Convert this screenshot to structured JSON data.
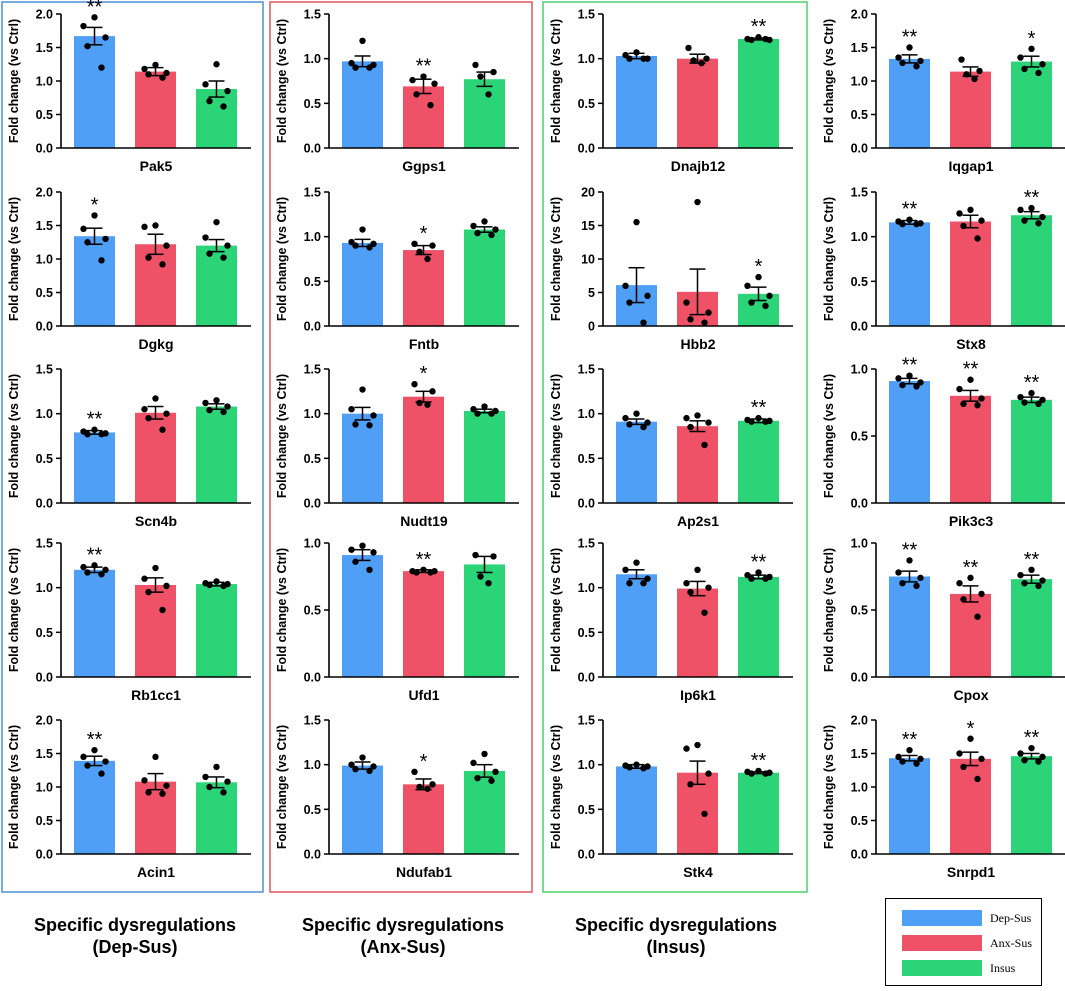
{
  "colors": {
    "dep_sus": "#4f9ff7",
    "anx_sus": "#ef5266",
    "insus": "#2ad477",
    "box_dep_sus": "#4a90d9",
    "box_anx_sus": "#e05763",
    "box_insus": "#4fd06b"
  },
  "group_titles": [
    {
      "line1": "Specific dysregulations",
      "line2": "(Dep-Sus)",
      "box": "dep_sus"
    },
    {
      "line1": "Specific dysregulations",
      "line2": "(Anx-Sus)",
      "box": "anx_sus"
    },
    {
      "line1": "Specific dysregulations",
      "line2": "(Insus)",
      "box": "insus"
    }
  ],
  "legend": [
    {
      "label": "Dep-Sus",
      "color": "#4f9ff7"
    },
    {
      "label": "Anx-Sus",
      "color": "#ef5266"
    },
    {
      "label": "Insus",
      "color": "#2ad477"
    }
  ],
  "chart_data": [
    {
      "type": "bar",
      "title": "Pak5",
      "ylabel": "Fold change (vs Ctrl)",
      "ylim": [
        0,
        2.0
      ],
      "yticks": [
        "0.0",
        "0.5",
        "1.0",
        "1.5",
        "2.0"
      ],
      "categories": [
        "Dep-Sus",
        "Anx-Sus",
        "Insus"
      ],
      "values": [
        1.67,
        1.14,
        0.88
      ],
      "errors": [
        0.13,
        0.06,
        0.12
      ],
      "significance": [
        "**",
        "",
        ""
      ],
      "points": [
        [
          1.95,
          1.82,
          1.65,
          1.52,
          1.2
        ],
        [
          1.24,
          1.18,
          1.12,
          1.1,
          1.05
        ],
        [
          1.25,
          0.95,
          0.85,
          0.7,
          0.62
        ]
      ]
    },
    {
      "type": "bar",
      "title": "Ggps1",
      "ylabel": "Fold change (vs Ctrl)",
      "ylim": [
        0,
        1.5
      ],
      "yticks": [
        "0.0",
        "0.5",
        "1.0",
        "1.5"
      ],
      "categories": [
        "Dep-Sus",
        "Anx-Sus",
        "Insus"
      ],
      "values": [
        0.97,
        0.69,
        0.77
      ],
      "errors": [
        0.06,
        0.08,
        0.08
      ],
      "significance": [
        "",
        "**",
        ""
      ],
      "points": [
        [
          1.2,
          0.95,
          0.93,
          0.9,
          0.9
        ],
        [
          0.8,
          0.76,
          0.72,
          0.6,
          0.48
        ],
        [
          0.93,
          0.85,
          0.8,
          0.6
        ]
      ]
    },
    {
      "type": "bar",
      "title": "Dnajb12",
      "ylabel": "Fold change (vs Ctrl)",
      "ylim": [
        0,
        1.5
      ],
      "yticks": [
        "0.0",
        "0.5",
        "1.0",
        "1.5"
      ],
      "categories": [
        "Dep-Sus",
        "Anx-Sus",
        "Insus"
      ],
      "values": [
        1.03,
        1.0,
        1.22
      ],
      "errors": [
        0.03,
        0.05,
        0.01
      ],
      "significance": [
        "",
        "",
        "**"
      ],
      "points": [
        [
          1.07,
          1.04,
          1.0,
          1.0,
          1.0
        ],
        [
          1.12,
          1.0,
          0.98,
          0.95
        ],
        [
          1.24,
          1.22,
          1.21,
          1.21,
          1.22
        ]
      ]
    },
    {
      "type": "bar",
      "title": "Iqgap1",
      "ylabel": "Fold change (vs Ctrl)",
      "ylim": [
        0,
        2.0
      ],
      "yticks": [
        "0.0",
        "0.5",
        "1.0",
        "1.5",
        "2.0"
      ],
      "categories": [
        "Dep-Sus",
        "Anx-Sus",
        "Insus"
      ],
      "values": [
        1.33,
        1.14,
        1.29
      ],
      "errors": [
        0.06,
        0.07,
        0.08
      ],
      "significance": [
        "**",
        "",
        "*"
      ],
      "points": [
        [
          1.5,
          1.35,
          1.3,
          1.27,
          1.22
        ],
        [
          1.32,
          1.15,
          1.1,
          1.03
        ],
        [
          1.48,
          1.35,
          1.25,
          1.18,
          1.12
        ]
      ]
    },
    {
      "type": "bar",
      "title": "Dgkg",
      "ylabel": "Fold change (vs Ctrl)",
      "ylim": [
        0,
        2.0
      ],
      "yticks": [
        "0.0",
        "0.5",
        "1.0",
        "1.5",
        "2.0"
      ],
      "categories": [
        "Dep-Sus",
        "Anx-Sus",
        "Insus"
      ],
      "values": [
        1.34,
        1.22,
        1.2
      ],
      "errors": [
        0.12,
        0.15,
        0.09
      ],
      "significance": [
        "*",
        "",
        ""
      ],
      "points": [
        [
          1.65,
          1.45,
          1.3,
          1.25,
          0.98
        ],
        [
          1.5,
          1.48,
          1.2,
          1.02,
          0.92
        ],
        [
          1.55,
          1.32,
          1.2,
          1.08,
          1.02
        ]
      ]
    },
    {
      "type": "bar",
      "title": "Fntb",
      "ylabel": "Fold change (vs Ctrl)",
      "ylim": [
        0,
        1.5
      ],
      "yticks": [
        "0.0",
        "0.5",
        "1.0",
        "1.5"
      ],
      "categories": [
        "Dep-Sus",
        "Anx-Sus",
        "Insus"
      ],
      "values": [
        0.93,
        0.85,
        1.08
      ],
      "errors": [
        0.04,
        0.05,
        0.03
      ],
      "significance": [
        "",
        "*",
        ""
      ],
      "points": [
        [
          1.08,
          0.94,
          0.92,
          0.9,
          0.88
        ],
        [
          0.92,
          0.9,
          0.83,
          0.75
        ],
        [
          1.17,
          1.12,
          1.08,
          1.04,
          1.02
        ]
      ]
    },
    {
      "type": "bar",
      "title": "Hbb2",
      "ylabel": "Fold change (vs Ctrl)",
      "ylim": [
        0,
        20
      ],
      "yticks": [
        "0",
        "5",
        "10",
        "15",
        "20"
      ],
      "categories": [
        "Dep-Sus",
        "Anx-Sus",
        "Insus"
      ],
      "values": [
        6.1,
        5.1,
        4.8
      ],
      "errors": [
        2.6,
        3.4,
        1.0
      ],
      "significance": [
        "",
        "",
        "*"
      ],
      "points": [
        [
          15.5,
          6.0,
          4.5,
          3.5,
          0.5
        ],
        [
          18.5,
          3.5,
          2.0,
          1.0,
          0.5
        ],
        [
          7.3,
          6.0,
          4.5,
          3.5,
          3.0
        ]
      ]
    },
    {
      "type": "bar",
      "title": "Stx8",
      "ylabel": "Fold change (vs Ctrl)",
      "ylim": [
        0,
        1.5
      ],
      "yticks": [
        "0.0",
        "0.5",
        "1.0",
        "1.5"
      ],
      "categories": [
        "Dep-Sus",
        "Anx-Sus",
        "Insus"
      ],
      "values": [
        1.16,
        1.17,
        1.24
      ],
      "errors": [
        0.02,
        0.07,
        0.04
      ],
      "significance": [
        "**",
        "",
        "**"
      ],
      "points": [
        [
          1.19,
          1.17,
          1.15,
          1.14,
          1.14
        ],
        [
          1.3,
          1.26,
          1.18,
          1.12,
          0.98
        ],
        [
          1.32,
          1.3,
          1.22,
          1.18,
          1.15
        ]
      ]
    },
    {
      "type": "bar",
      "title": "Scn4b",
      "ylabel": "Fold change (vs Ctrl)",
      "ylim": [
        0,
        1.5
      ],
      "yticks": [
        "0.0",
        "0.5",
        "1.0",
        "1.5"
      ],
      "categories": [
        "Dep-Sus",
        "Anx-Sus",
        "Insus"
      ],
      "values": [
        0.79,
        1.01,
        1.08
      ],
      "errors": [
        0.02,
        0.07,
        0.03
      ],
      "significance": [
        "**",
        "",
        ""
      ],
      "points": [
        [
          0.82,
          0.8,
          0.78,
          0.77,
          0.77
        ],
        [
          1.17,
          1.05,
          1.0,
          0.95,
          0.82
        ],
        [
          1.15,
          1.12,
          1.08,
          1.04,
          1.02
        ]
      ]
    },
    {
      "type": "bar",
      "title": "Nudt19",
      "ylabel": "Fold change (vs Ctrl)",
      "ylim": [
        0,
        1.5
      ],
      "yticks": [
        "0.0",
        "0.5",
        "1.0",
        "1.5"
      ],
      "categories": [
        "Dep-Sus",
        "Anx-Sus",
        "Insus"
      ],
      "values": [
        1.0,
        1.19,
        1.03
      ],
      "errors": [
        0.07,
        0.06,
        0.02
      ],
      "significance": [
        "",
        "*",
        ""
      ],
      "points": [
        [
          1.27,
          1.05,
          0.98,
          0.88,
          0.87
        ],
        [
          1.33,
          1.25,
          1.12,
          1.1
        ],
        [
          1.08,
          1.05,
          1.03,
          1.0,
          1.0
        ]
      ]
    },
    {
      "type": "bar",
      "title": "Ap2s1",
      "ylabel": "Fold change (vs Ctrl)",
      "ylim": [
        0,
        1.5
      ],
      "yticks": [
        "0.0",
        "0.5",
        "1.0",
        "1.5"
      ],
      "categories": [
        "Dep-Sus",
        "Anx-Sus",
        "Insus"
      ],
      "values": [
        0.91,
        0.86,
        0.92
      ],
      "errors": [
        0.03,
        0.06,
        0.02
      ],
      "significance": [
        "",
        "",
        "**"
      ],
      "points": [
        [
          1.0,
          0.95,
          0.9,
          0.88,
          0.85
        ],
        [
          0.98,
          0.95,
          0.9,
          0.85,
          0.65
        ],
        [
          0.95,
          0.93,
          0.92,
          0.91,
          0.91
        ]
      ]
    },
    {
      "type": "bar",
      "title": "Pik3c3",
      "ylabel": "Fold change (vs Ctrl)",
      "ylim": [
        0,
        1.0
      ],
      "yticks": [
        "0.0",
        "0.5",
        "1.0"
      ],
      "categories": [
        "Dep-Sus",
        "Anx-Sus",
        "Insus"
      ],
      "values": [
        0.91,
        0.8,
        0.77
      ],
      "errors": [
        0.02,
        0.04,
        0.02
      ],
      "significance": [
        "**",
        "**",
        "**"
      ],
      "points": [
        [
          0.95,
          0.93,
          0.9,
          0.88,
          0.87
        ],
        [
          0.92,
          0.85,
          0.78,
          0.74,
          0.73
        ],
        [
          0.82,
          0.79,
          0.77,
          0.75,
          0.74
        ]
      ]
    },
    {
      "type": "bar",
      "title": "Rb1cc1",
      "ylabel": "Fold change (vs Ctrl)",
      "ylim": [
        0,
        1.5
      ],
      "yticks": [
        "0.0",
        "0.5",
        "1.0",
        "1.5"
      ],
      "categories": [
        "Dep-Sus",
        "Anx-Sus",
        "Insus"
      ],
      "values": [
        1.2,
        1.03,
        1.04
      ],
      "errors": [
        0.03,
        0.08,
        0.02
      ],
      "significance": [
        "**",
        "",
        ""
      ],
      "points": [
        [
          1.25,
          1.23,
          1.2,
          1.17,
          1.15
        ],
        [
          1.22,
          1.1,
          1.02,
          0.95,
          0.75
        ],
        [
          1.07,
          1.05,
          1.04,
          1.03,
          1.02
        ]
      ]
    },
    {
      "type": "bar",
      "title": "Ufd1",
      "ylabel": "Fold change (vs Ctrl)",
      "ylim": [
        0,
        1.0
      ],
      "yticks": [
        "0.0",
        "0.5",
        "1.0"
      ],
      "categories": [
        "Dep-Sus",
        "Anx-Sus",
        "Insus"
      ],
      "values": [
        0.91,
        0.79,
        0.84
      ],
      "errors": [
        0.04,
        0.01,
        0.06
      ],
      "significance": [
        "",
        "**",
        ""
      ],
      "points": [
        [
          0.98,
          0.95,
          0.93,
          0.86,
          0.8
        ],
        [
          0.8,
          0.79,
          0.79,
          0.78,
          0.78
        ],
        [
          0.91,
          0.9,
          0.75,
          0.7
        ]
      ]
    },
    {
      "type": "bar",
      "title": "Ip6k1",
      "ylabel": "Fold change (vs Ctrl)",
      "ylim": [
        0,
        1.5
      ],
      "yticks": [
        "0.0",
        "0.5",
        "1.0",
        "1.5"
      ],
      "categories": [
        "Dep-Sus",
        "Anx-Sus",
        "Insus"
      ],
      "values": [
        1.15,
        0.99,
        1.12
      ],
      "errors": [
        0.05,
        0.08,
        0.02
      ],
      "significance": [
        "",
        "",
        "**"
      ],
      "points": [
        [
          1.28,
          1.2,
          1.1,
          1.05,
          1.05
        ],
        [
          1.2,
          1.05,
          1.0,
          0.95,
          0.72
        ],
        [
          1.17,
          1.14,
          1.12,
          1.1,
          1.1
        ]
      ]
    },
    {
      "type": "bar",
      "title": "Cpox",
      "ylabel": "Fold change (vs Ctrl)",
      "ylim": [
        0,
        1.0
      ],
      "yticks": [
        "0.0",
        "0.5",
        "1.0"
      ],
      "categories": [
        "Dep-Sus",
        "Anx-Sus",
        "Insus"
      ],
      "values": [
        0.75,
        0.62,
        0.73
      ],
      "errors": [
        0.04,
        0.06,
        0.03
      ],
      "significance": [
        "**",
        "**",
        "**"
      ],
      "points": [
        [
          0.87,
          0.78,
          0.74,
          0.7,
          0.68
        ],
        [
          0.74,
          0.7,
          0.62,
          0.58,
          0.45
        ],
        [
          0.8,
          0.76,
          0.72,
          0.7,
          0.68
        ]
      ]
    },
    {
      "type": "bar",
      "title": "Acin1",
      "ylabel": "Fold change (vs Ctrl)",
      "ylim": [
        0,
        2.0
      ],
      "yticks": [
        "0.0",
        "0.5",
        "1.0",
        "1.5",
        "2.0"
      ],
      "categories": [
        "Dep-Sus",
        "Anx-Sus",
        "Insus"
      ],
      "values": [
        1.39,
        1.08,
        1.07
      ],
      "errors": [
        0.07,
        0.12,
        0.08
      ],
      "significance": [
        "**",
        "",
        ""
      ],
      "points": [
        [
          1.55,
          1.45,
          1.38,
          1.32,
          1.2
        ],
        [
          1.45,
          1.1,
          1.02,
          0.92,
          0.9
        ],
        [
          1.3,
          1.15,
          1.08,
          1.0,
          0.92
        ]
      ]
    },
    {
      "type": "bar",
      "title": "Ndufab1",
      "ylabel": "Fold change (vs Ctrl)",
      "ylim": [
        0,
        1.5
      ],
      "yticks": [
        "0.0",
        "0.5",
        "1.0",
        "1.5"
      ],
      "categories": [
        "Dep-Sus",
        "Anx-Sus",
        "Insus"
      ],
      "values": [
        0.99,
        0.78,
        0.93
      ],
      "errors": [
        0.04,
        0.06,
        0.07
      ],
      "significance": [
        "",
        "*",
        ""
      ],
      "points": [
        [
          1.08,
          1.0,
          0.98,
          0.95,
          0.93
        ],
        [
          0.92,
          0.78,
          0.75,
          0.73
        ],
        [
          1.12,
          1.02,
          0.92,
          0.85,
          0.82
        ]
      ]
    },
    {
      "type": "bar",
      "title": "Stk4",
      "ylabel": "Fold change (vs Ctrl)",
      "ylim": [
        0,
        1.5
      ],
      "yticks": [
        "0.0",
        "0.5",
        "1.0",
        "1.5"
      ],
      "categories": [
        "Dep-Sus",
        "Anx-Sus",
        "Insus"
      ],
      "values": [
        0.98,
        0.91,
        0.91
      ],
      "errors": [
        0.02,
        0.13,
        0.01
      ],
      "significance": [
        "",
        "",
        "**"
      ],
      "points": [
        [
          1.0,
          0.99,
          0.98,
          0.97,
          0.96
        ],
        [
          1.22,
          1.18,
          0.9,
          0.78,
          0.45
        ],
        [
          0.93,
          0.92,
          0.91,
          0.9,
          0.9
        ]
      ]
    },
    {
      "type": "bar",
      "title": "Snrpd1",
      "ylabel": "Fold change (vs Ctrl)",
      "ylim": [
        0,
        2.0
      ],
      "yticks": [
        "0.0",
        "0.5",
        "1.0",
        "1.5",
        "2.0"
      ],
      "categories": [
        "Dep-Sus",
        "Anx-Sus",
        "Insus"
      ],
      "values": [
        1.43,
        1.42,
        1.46
      ],
      "errors": [
        0.04,
        0.1,
        0.04
      ],
      "significance": [
        "**",
        "*",
        "**"
      ],
      "points": [
        [
          1.55,
          1.45,
          1.42,
          1.38,
          1.35
        ],
        [
          1.72,
          1.5,
          1.42,
          1.3,
          1.12
        ],
        [
          1.58,
          1.5,
          1.45,
          1.4,
          1.38
        ]
      ]
    }
  ]
}
